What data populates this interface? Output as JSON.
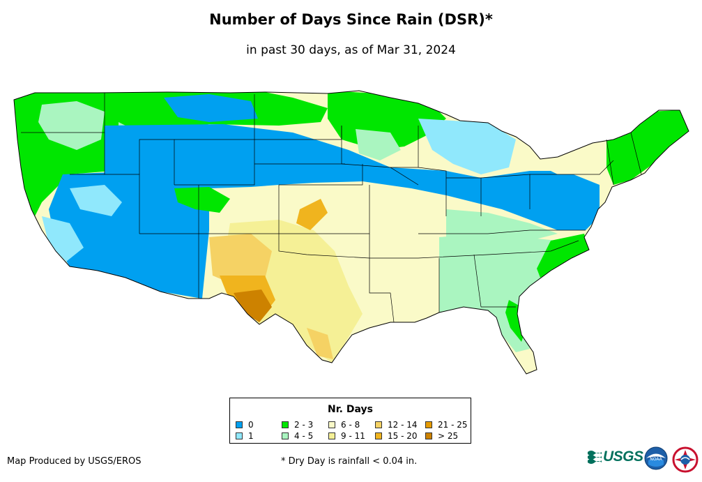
{
  "title": "Number of Days Since Rain (DSR)*",
  "subtitle": "in past 30 days, as of Mar 31, 2024",
  "legend": {
    "title": "Nr. Days",
    "items": [
      {
        "label": "0",
        "color": "#00a0f0"
      },
      {
        "label": "1",
        "color": "#90e8fc"
      },
      {
        "label": "2 - 3",
        "color": "#00e600"
      },
      {
        "label": "4 - 5",
        "color": "#aaf5c0"
      },
      {
        "label": "6 - 8",
        "color": "#fafac8"
      },
      {
        "label": "9 - 11",
        "color": "#f5f096"
      },
      {
        "label": "12 - 14",
        "color": "#f5d264"
      },
      {
        "label": "15 - 20",
        "color": "#f0b41e"
      },
      {
        "label": "21 - 25",
        "color": "#e69b00"
      },
      {
        "label": "> 25",
        "color": "#cd8200"
      }
    ]
  },
  "credit": "Map Produced by USGS/EROS",
  "footnote": "* Dry Day is rainfall < 0.04 in.",
  "logos": {
    "usgs": "USGS",
    "noaa": "NOAA"
  },
  "colors": {
    "border": "#000000",
    "water": "#ffffff"
  }
}
